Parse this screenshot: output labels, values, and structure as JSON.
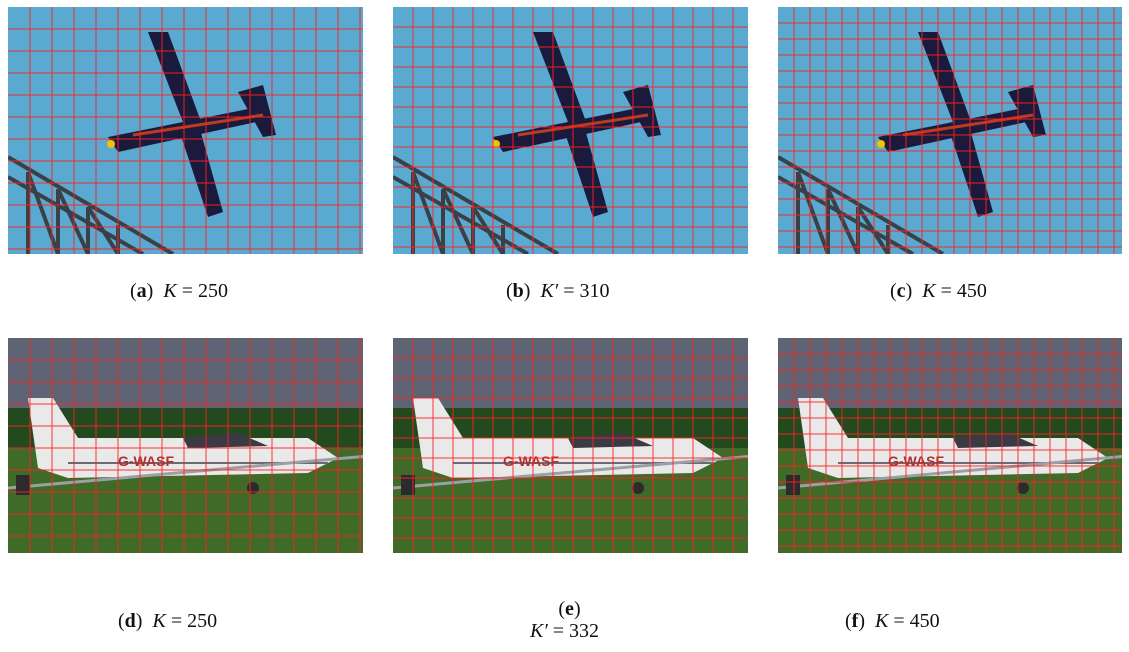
{
  "figure": {
    "panels": [
      {
        "id": "a",
        "tag": "a",
        "variable": "K",
        "equals": "= 250",
        "scene": "cargo-plane-over-bridge"
      },
      {
        "id": "b",
        "tag": "b",
        "variable": "K′",
        "equals": "= 310",
        "scene": "cargo-plane-over-bridge"
      },
      {
        "id": "c",
        "tag": "c",
        "variable": "K",
        "equals": "= 450",
        "scene": "cargo-plane-over-bridge"
      },
      {
        "id": "d",
        "tag": "d",
        "variable": "K",
        "equals": "= 250",
        "scene": "light-aircraft-on-grass"
      },
      {
        "id": "e",
        "tag": "e",
        "variable": "K′",
        "equals": "= 332",
        "scene": "light-aircraft-on-grass"
      },
      {
        "id": "f",
        "tag": "f",
        "variable": "K",
        "equals": "= 450",
        "scene": "light-aircraft-on-grass"
      }
    ],
    "aircraft_registration": "G-WASF",
    "colors": {
      "sky_blue": "#5aa9d1",
      "plane_navy": "#1b1a3c",
      "superpixel_boundary": "#ff2020",
      "overcast_sky": "#5e6474",
      "tree_line": "#234a1e",
      "grass": "#3f6a27",
      "aircraft_white": "#e9e9e9"
    }
  }
}
